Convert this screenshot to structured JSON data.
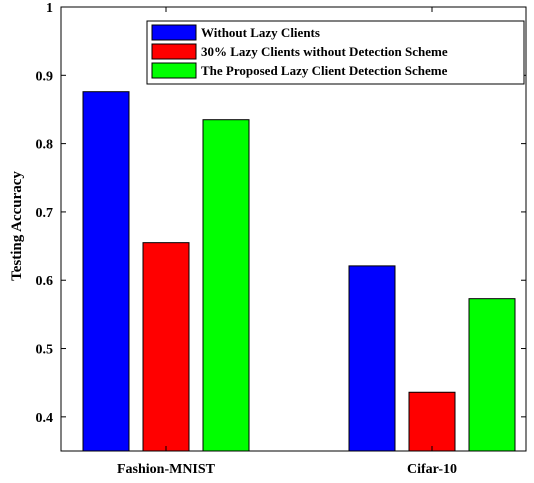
{
  "chart_data": {
    "type": "bar",
    "title": "",
    "xlabel": "",
    "ylabel": "Testing Accuracy",
    "ylim": [
      0.35,
      1
    ],
    "yticks": [
      0.4,
      0.5,
      0.6,
      0.7,
      0.8,
      0.9,
      1
    ],
    "ytick_labels": [
      "0.4",
      "0.5",
      "0.6",
      "0.7",
      "0.8",
      "0.9",
      "1"
    ],
    "categories": [
      "Fashion-MNIST",
      "Cifar-10"
    ],
    "grid": false,
    "legend_position": "top-right",
    "series": [
      {
        "name": "Without Lazy Clients",
        "color": "#0000ff",
        "values": [
          0.876,
          0.621
        ]
      },
      {
        "name": "30% Lazy Clients without Detection Scheme",
        "color": "#ff0000",
        "values": [
          0.655,
          0.436
        ]
      },
      {
        "name": "The Proposed Lazy Client Detection Scheme",
        "color": "#00ff00",
        "values": [
          0.835,
          0.573
        ]
      }
    ]
  }
}
